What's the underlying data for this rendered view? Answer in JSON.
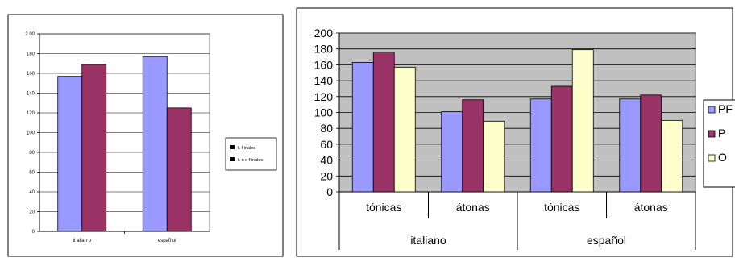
{
  "chart_data": [
    {
      "type": "bar",
      "title": "",
      "xlabel": "",
      "ylabel": "",
      "ylim": [
        0,
        200
      ],
      "yticks": [
        "0",
        "20",
        "40",
        "60",
        "80",
        "100",
        "120",
        "140",
        "160",
        "180",
        "2 00"
      ],
      "categories": [
        "it alian o",
        "españ ol"
      ],
      "grid": true,
      "plot_background": "#ffffff",
      "legend_position": "right",
      "series": [
        {
          "name": "t. f inales",
          "color": "#9999FF",
          "values": [
            157,
            177
          ]
        },
        {
          "name": "t. n o f inales",
          "color": "#993366",
          "values": [
            169,
            125
          ]
        }
      ]
    },
    {
      "type": "bar",
      "title": "",
      "xlabel": "",
      "ylabel": "",
      "ylim": [
        0,
        200
      ],
      "yticks": [
        "0",
        "20",
        "40",
        "60",
        "80",
        "100",
        "120",
        "140",
        "160",
        "180",
        "200"
      ],
      "categories": [
        "tónicas",
        "átonas",
        "tónicas",
        "átonas"
      ],
      "groups": [
        {
          "label": "italiano",
          "span": 2
        },
        {
          "label": "español",
          "span": 2
        }
      ],
      "grid": true,
      "plot_background": "#C0C0C0",
      "legend_position": "right",
      "series": [
        {
          "name": "PF",
          "color": "#9999FF",
          "values": [
            163,
            101,
            117,
            117
          ]
        },
        {
          "name": "P",
          "color": "#993366",
          "values": [
            176,
            116,
            133,
            122
          ]
        },
        {
          "name": "O",
          "color": "#FFFFCC",
          "values": [
            157,
            89,
            179,
            90
          ]
        }
      ]
    }
  ]
}
